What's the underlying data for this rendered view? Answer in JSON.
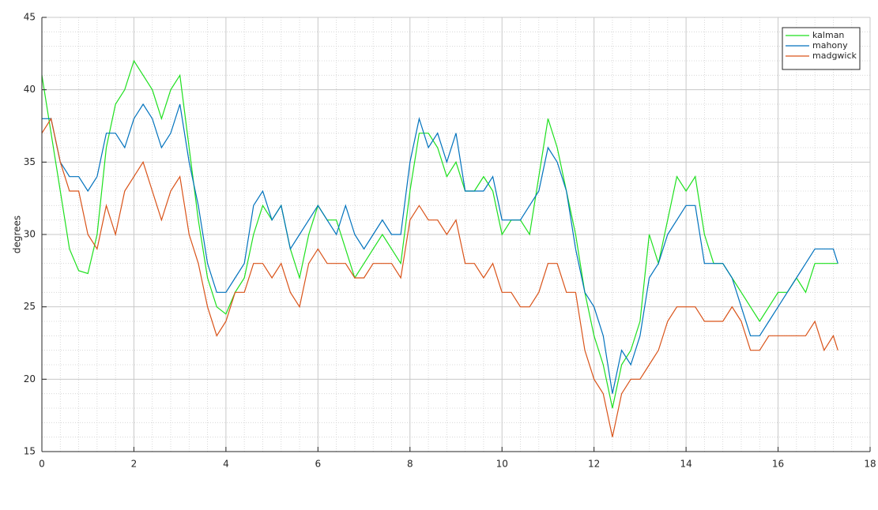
{
  "chart_data": {
    "type": "line",
    "ylabel": "degrees",
    "x": [
      0,
      0.2,
      0.4,
      0.6,
      0.8,
      1.0,
      1.2,
      1.4,
      1.6,
      1.8,
      2.0,
      2.2,
      2.4,
      2.6,
      2.8,
      3.0,
      3.2,
      3.4,
      3.6,
      3.8,
      4.0,
      4.2,
      4.4,
      4.6,
      4.8,
      5.0,
      5.2,
      5.4,
      5.6,
      5.8,
      6.0,
      6.2,
      6.4,
      6.6,
      6.8,
      7.0,
      7.2,
      7.4,
      7.6,
      7.8,
      8.0,
      8.2,
      8.4,
      8.6,
      8.8,
      9.0,
      9.2,
      9.4,
      9.6,
      9.8,
      10.0,
      10.2,
      10.4,
      10.6,
      10.8,
      11.0,
      11.2,
      11.4,
      11.6,
      11.8,
      12.0,
      12.2,
      12.4,
      12.6,
      12.8,
      13.0,
      13.2,
      13.4,
      13.6,
      13.8,
      14.0,
      14.2,
      14.4,
      14.6,
      14.8,
      15.0,
      15.2,
      15.4,
      15.6,
      15.8,
      16.0,
      16.2,
      16.4,
      16.6,
      16.8,
      17.0,
      17.2,
      17.3
    ],
    "series": [
      {
        "name": "kalman",
        "color": "#1ee01e",
        "values": [
          41,
          37,
          33,
          29,
          27.5,
          27.3,
          30,
          36,
          39,
          40,
          42,
          41,
          40,
          38,
          40,
          41,
          36,
          31,
          27,
          25,
          24.5,
          26,
          27,
          30,
          32,
          31,
          32,
          29,
          27,
          30,
          32,
          31,
          31,
          29,
          27,
          28,
          29,
          30,
          29,
          28,
          33,
          37,
          37,
          36,
          34,
          35,
          33,
          33,
          34,
          33,
          30,
          31,
          31,
          30,
          34,
          38,
          36,
          33,
          30,
          26,
          23,
          21,
          18,
          21,
          22,
          24,
          30,
          28,
          31,
          34,
          33,
          34,
          30,
          28,
          28,
          27,
          26,
          25,
          24,
          25,
          26,
          26,
          27,
          26,
          28,
          28,
          28,
          28
        ]
      },
      {
        "name": "mahony",
        "color": "#0072bd",
        "values": [
          38,
          38,
          35,
          34,
          34,
          33,
          34,
          37,
          37,
          36,
          38,
          39,
          38,
          36,
          37,
          39,
          35,
          32,
          28,
          26,
          26,
          27,
          28,
          32,
          33,
          31,
          32,
          29,
          30,
          31,
          32,
          31,
          30,
          32,
          30,
          29,
          30,
          31,
          30,
          30,
          35,
          38,
          36,
          37,
          35,
          37,
          33,
          33,
          33,
          34,
          31,
          31,
          31,
          32,
          33,
          36,
          35,
          33,
          29,
          26,
          25,
          23,
          19,
          22,
          21,
          23,
          27,
          28,
          30,
          31,
          32,
          32,
          28,
          28,
          28,
          27,
          25,
          23,
          23,
          24,
          25,
          26,
          27,
          28,
          29,
          29,
          29,
          28
        ]
      },
      {
        "name": "madgwick",
        "color": "#d95319",
        "values": [
          37,
          38,
          35,
          33,
          33,
          30,
          29,
          32,
          30,
          33,
          34,
          35,
          33,
          31,
          33,
          34,
          30,
          28,
          25,
          23,
          24,
          26,
          26,
          28,
          28,
          27,
          28,
          26,
          25,
          28,
          29,
          28,
          28,
          28,
          27,
          27,
          28,
          28,
          28,
          27,
          31,
          32,
          31,
          31,
          30,
          31,
          28,
          28,
          27,
          28,
          26,
          26,
          25,
          25,
          26,
          28,
          28,
          26,
          26,
          22,
          20,
          19,
          16,
          19,
          20,
          20,
          21,
          22,
          24,
          25,
          25,
          25,
          24,
          24,
          24,
          25,
          24,
          22,
          22,
          23,
          23,
          23,
          23,
          23,
          24,
          22,
          23,
          22
        ]
      }
    ],
    "xlim": [
      0,
      18
    ],
    "xticks": [
      0,
      2,
      4,
      6,
      8,
      10,
      12,
      14,
      16,
      18
    ],
    "ylim": [
      15,
      45
    ],
    "yticks": [
      15,
      20,
      25,
      30,
      35,
      40,
      45
    ],
    "grid": true,
    "minor_grid": true,
    "legend": "northeast"
  }
}
